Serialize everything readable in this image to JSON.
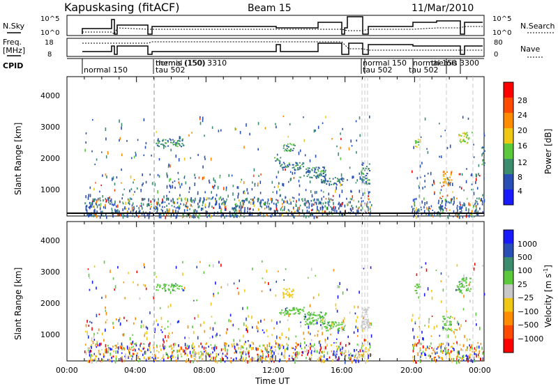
{
  "header": {
    "station": "Kapuskasing (fitACF)",
    "beam": "Beam 15",
    "date": "11/Mar/2010"
  },
  "panels": {
    "nsky_label": "N.Sky",
    "nsky_ticks": [
      "10^5",
      "10^0"
    ],
    "nsearch_label": "N.Search",
    "nsearch_ticks": [
      "10^5",
      "10^0"
    ],
    "freq_label": "Freq.",
    "freq_unit": "[MHz]",
    "freq_ticks": [
      "18",
      "8"
    ],
    "nave_label": "Nave",
    "nave_ticks": [
      "80",
      "0"
    ],
    "cpid_label": "CPID",
    "cpid_entries": [
      "normal 150",
      "themis (150) 3310",
      "normal (150)",
      "tau 502",
      "normal 150",
      "tau 502",
      "normal 150",
      "themis 3300",
      "tau 502"
    ]
  },
  "axes": {
    "ylabel": "Slant Range [km]",
    "xlabel": "Time UT",
    "x_ticks": [
      "00:00",
      "04:00",
      "08:00",
      "12:00",
      "16:00",
      "20:00",
      "00:00"
    ],
    "y_ticks": [
      "1000",
      "2000",
      "3000",
      "4000"
    ]
  },
  "colorbars": {
    "power_label": "Power [dB]",
    "power_ticks": [
      "4",
      "8",
      "12",
      "16",
      "20",
      "24",
      "28"
    ],
    "power_colors": [
      "#1a1aff",
      "#2a4fb4",
      "#3c8c6e",
      "#5cc83c",
      "#f0c814",
      "#ff8c00",
      "#ff4a00",
      "#ff0000"
    ],
    "velocity_label": "Velocity [m s",
    "velocity_label_sup": "-1",
    "velocity_label_tail": "]",
    "velocity_ticks": [
      "1000",
      "500",
      "100",
      "25",
      "−25",
      "−100",
      "−500",
      "−1000"
    ],
    "velocity_colors": [
      "#1a1aff",
      "#2a4fb4",
      "#3c8c6e",
      "#5cc83c",
      "#c8c8c8",
      "#f0c814",
      "#ff8c00",
      "#ff4a00",
      "#ff0000"
    ]
  },
  "chart_data": [
    {
      "type": "heatmap",
      "title": "Power",
      "x_range_hours": [
        0,
        24
      ],
      "ylim": [
        180,
        4600
      ],
      "colorbar": "Power [dB]",
      "regions": [
        {
          "t": [
            5.1,
            6.7
          ],
          "r": [
            2400,
            2650
          ],
          "value_db": 10
        },
        {
          "t": [
            11.9,
            12.3
          ],
          "r": [
            1920,
            2060
          ],
          "value_db": 9
        },
        {
          "t": [
            12.2,
            13.6
          ],
          "r": [
            1650,
            1900
          ],
          "value_db": 9
        },
        {
          "t": [
            12.4,
            13.1
          ],
          "r": [
            2250,
            2500
          ],
          "value_db": 10
        },
        {
          "t": [
            13.6,
            14.9
          ],
          "r": [
            1400,
            1750
          ],
          "value_db": 9
        },
        {
          "t": [
            14.6,
            15.9
          ],
          "r": [
            1180,
            1420
          ],
          "value_db": 9
        },
        {
          "t": [
            16.9,
            17.4
          ],
          "r": [
            1200,
            1900
          ],
          "value_db": 9
        },
        {
          "t": [
            20.0,
            20.3
          ],
          "r": [
            2350,
            2650
          ],
          "value_db": 16
        },
        {
          "t": [
            21.6,
            22.1
          ],
          "r": [
            1150,
            1650
          ],
          "value_db": 22
        },
        {
          "t": [
            22.5,
            23.1
          ],
          "r": [
            2500,
            2850
          ],
          "value_db": 16
        },
        {
          "t": [
            23.8,
            24.0
          ],
          "r": [
            1800,
            2400
          ],
          "value_db": 10
        }
      ]
    },
    {
      "type": "heatmap",
      "title": "Velocity",
      "x_range_hours": [
        0,
        24
      ],
      "ylim": [
        180,
        4600
      ],
      "colorbar": "Velocity [m s^-1]",
      "regions": [
        {
          "t": [
            5.1,
            6.7
          ],
          "r": [
            2400,
            2650
          ],
          "value_ms": 0
        },
        {
          "t": [
            12.4,
            13.1
          ],
          "r": [
            2200,
            2500
          ],
          "value_ms": -300
        },
        {
          "t": [
            12.2,
            13.6
          ],
          "r": [
            1650,
            1900
          ],
          "value_ms": 0
        },
        {
          "t": [
            13.6,
            14.9
          ],
          "r": [
            1350,
            1750
          ],
          "value_ms": 0
        },
        {
          "t": [
            14.6,
            16.0
          ],
          "r": [
            1150,
            1450
          ],
          "value_ms": 0
        },
        {
          "t": [
            16.9,
            17.4
          ],
          "r": [
            1200,
            1900
          ],
          "value_ms": -60
        },
        {
          "t": [
            20.0,
            20.3
          ],
          "r": [
            2300,
            2650
          ],
          "value_ms": 0
        },
        {
          "t": [
            21.6,
            22.1
          ],
          "r": [
            1150,
            1650
          ],
          "value_ms": 0
        },
        {
          "t": [
            22.4,
            23.2
          ],
          "r": [
            2350,
            2850
          ],
          "value_ms": 0
        }
      ]
    }
  ]
}
